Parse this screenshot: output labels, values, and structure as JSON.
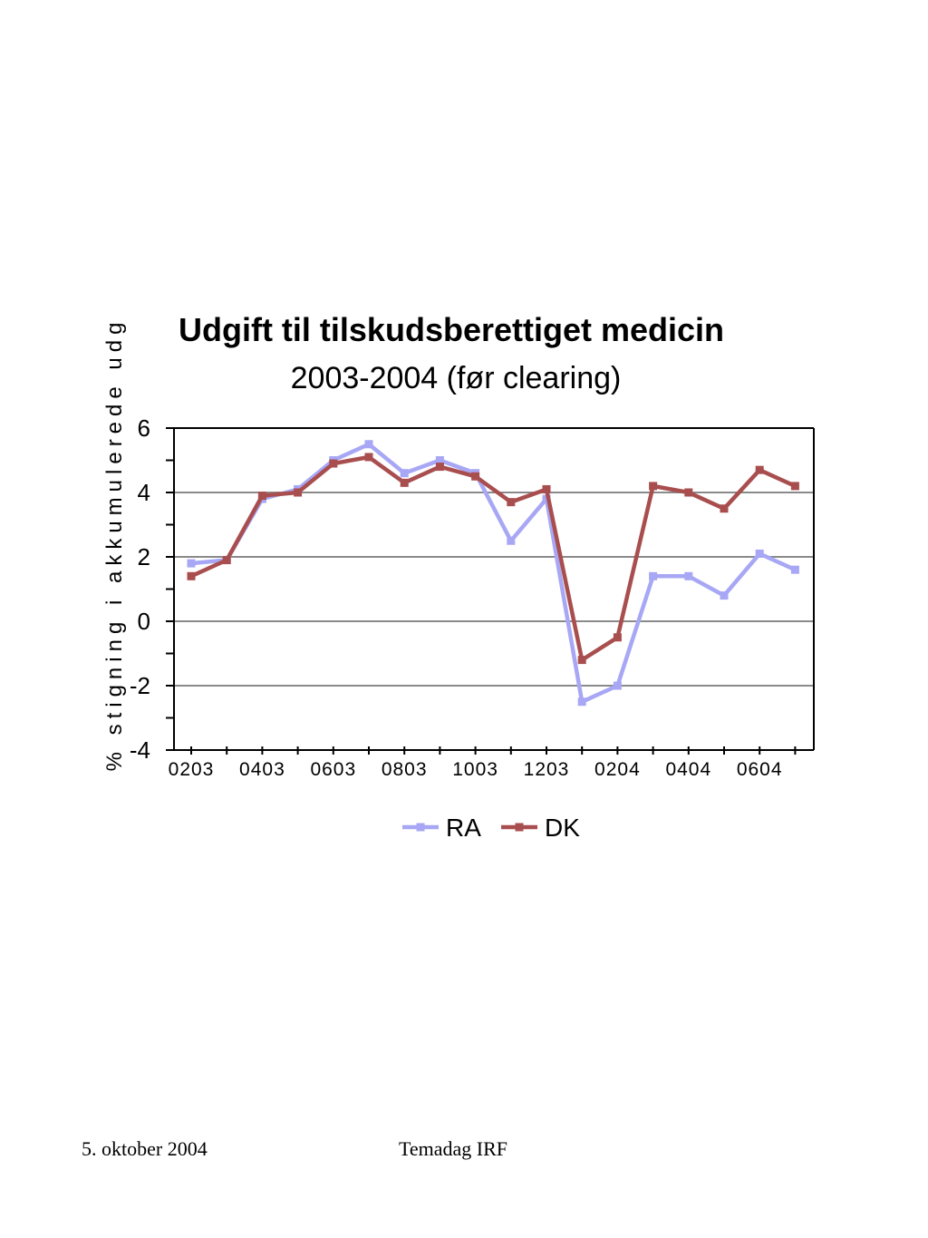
{
  "chart_data": {
    "type": "line",
    "title": "Udgift til tilskudsberettiget medicin",
    "subtitle": "2003-2004 (før clearing)",
    "ylabel": "% stigning i akkumulerede udg",
    "xlabel": "",
    "ylim": [
      -4,
      6
    ],
    "yticks": [
      -4,
      -2,
      0,
      2,
      4,
      6
    ],
    "ytick_labels": [
      "-4",
      "-2",
      "0",
      "2",
      "4",
      "6"
    ],
    "ygrid": [
      -2,
      0,
      2,
      4
    ],
    "x": [
      "0203",
      "0303",
      "0403",
      "0503",
      "0603",
      "0703",
      "0803",
      "0903",
      "1003",
      "1103",
      "1203",
      "0104",
      "0204",
      "0304",
      "0404",
      "0504",
      "0604",
      "0704"
    ],
    "xtick_labels": [
      "0203",
      "0403",
      "0603",
      "0803",
      "1003",
      "1203",
      "0204",
      "0404",
      "0604"
    ],
    "series": [
      {
        "name": "RA",
        "color": "#a7a7f5",
        "values": [
          1.8,
          1.9,
          3.8,
          4.1,
          5.0,
          5.5,
          4.6,
          5.0,
          4.6,
          2.5,
          3.8,
          -2.5,
          -2.0,
          1.4,
          1.4,
          0.8,
          2.1,
          1.6
        ]
      },
      {
        "name": "DK",
        "color": "#a94e4e",
        "values": [
          1.4,
          1.9,
          3.9,
          4.0,
          4.9,
          5.1,
          4.3,
          4.8,
          4.5,
          3.7,
          4.1,
          -1.2,
          -0.5,
          4.2,
          4.0,
          3.5,
          4.7,
          4.2
        ]
      }
    ],
    "grid": true,
    "legend": "bottom"
  },
  "footer": {
    "date": "5. oktober 2004",
    "event": "Temadag IRF"
  }
}
